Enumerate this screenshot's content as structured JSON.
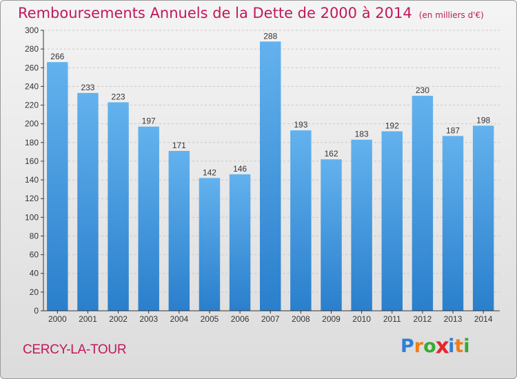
{
  "title": "Remboursements Annuels de la Dette de 2000 à 2014",
  "unit": "(en milliers d'€)",
  "commune": "CERCY-LA-TOUR",
  "brand": {
    "letters": [
      "P",
      "r",
      "o",
      "x",
      "i",
      "t",
      "i"
    ],
    "colors": [
      "#2e7fd6",
      "#f07d1a",
      "#39a935",
      "#e5262b",
      "#2e7fd6",
      "#f07d1a",
      "#39a935"
    ]
  },
  "colors": {
    "bar_top": "#63b2ee",
    "bar_bottom": "#2a7fcc",
    "text": "#c0185a",
    "grid": "#c8c8c8"
  },
  "chart_data": {
    "type": "bar",
    "categories": [
      "2000",
      "2001",
      "2002",
      "2003",
      "2004",
      "2005",
      "2006",
      "2007",
      "2008",
      "2009",
      "2010",
      "2011",
      "2012",
      "2013",
      "2014"
    ],
    "values": [
      266,
      233,
      223,
      197,
      171,
      142,
      146,
      288,
      193,
      162,
      183,
      192,
      230,
      187,
      198
    ],
    "data_labels": [
      "266",
      "233",
      "223",
      "197",
      "171",
      "142",
      "146",
      "288",
      "193",
      "162",
      "183",
      "192",
      "230",
      "187",
      "198"
    ],
    "yticks": [
      "0",
      "20",
      "40",
      "60",
      "80",
      "100",
      "120",
      "140",
      "160",
      "180",
      "200",
      "220",
      "240",
      "260",
      "280",
      "300"
    ],
    "ylim": [
      0,
      300
    ],
    "grid": true
  }
}
